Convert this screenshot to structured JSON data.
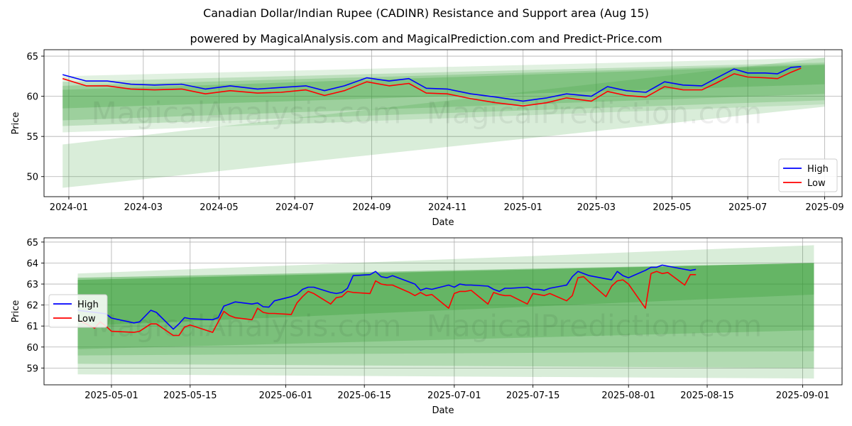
{
  "title": "Canadian Dollar/Indian Rupee (CADINR) Resistance and Support area (Aug 15)",
  "subtitle": "powered by MagicalAnalysis.com and MagicalPrediction.com and Predict-Price.com",
  "watermarks": [
    "MagicalAnalysis.com",
    "MagicalPrediction.com"
  ],
  "colors": {
    "high": "#0000ff",
    "low": "#ff0000",
    "band": "#2e9a2e",
    "grid": "#b0b0b0"
  },
  "chart_data": [
    {
      "type": "line",
      "xlabel": "Date",
      "ylabel": "Price",
      "xlim": [
        "2023-12-12",
        "2025-09-15"
      ],
      "ylim": [
        47.5,
        65.8
      ],
      "xticks": [
        "2024-01-01",
        "2024-03-01",
        "2024-05-01",
        "2024-07-01",
        "2024-09-01",
        "2024-11-01",
        "2025-01-01",
        "2025-03-01",
        "2025-05-01",
        "2025-07-01",
        "2025-09-01"
      ],
      "xtick_labels": [
        "2024-01",
        "2024-03",
        "2024-05",
        "2024-07",
        "2024-09",
        "2024-11",
        "2025-01",
        "2025-03",
        "2025-05",
        "2025-07",
        "2025-09"
      ],
      "yticks": [
        50,
        55,
        60,
        65
      ],
      "legend_position": "lower-right",
      "grid": true,
      "series": [
        {
          "name": "High",
          "x": [
            "2023-12-27",
            "2024-01-15",
            "2024-02-01",
            "2024-02-20",
            "2024-03-10",
            "2024-04-01",
            "2024-04-20",
            "2024-05-10",
            "2024-06-01",
            "2024-06-20",
            "2024-07-10",
            "2024-07-25",
            "2024-08-10",
            "2024-08-28",
            "2024-09-15",
            "2024-10-01",
            "2024-10-15",
            "2024-11-01",
            "2024-11-20",
            "2024-12-10",
            "2025-01-01",
            "2025-01-20",
            "2025-02-05",
            "2025-02-25",
            "2025-03-10",
            "2025-03-25",
            "2025-04-10",
            "2025-04-25",
            "2025-05-10",
            "2025-05-25",
            "2025-06-05",
            "2025-06-20",
            "2025-07-01",
            "2025-07-15",
            "2025-07-25",
            "2025-08-05",
            "2025-08-13"
          ],
          "values": [
            62.7,
            61.9,
            61.9,
            61.5,
            61.4,
            61.5,
            60.9,
            61.3,
            60.9,
            61.1,
            61.3,
            60.7,
            61.3,
            62.3,
            61.9,
            62.2,
            61.0,
            60.9,
            60.3,
            59.9,
            59.4,
            59.8,
            60.3,
            60.0,
            61.2,
            60.7,
            60.5,
            61.8,
            61.4,
            61.3,
            62.2,
            63.4,
            62.9,
            62.9,
            62.8,
            63.6,
            63.7
          ]
        },
        {
          "name": "Low",
          "x": [
            "2023-12-27",
            "2024-01-15",
            "2024-02-01",
            "2024-02-20",
            "2024-03-10",
            "2024-04-01",
            "2024-04-20",
            "2024-05-10",
            "2024-06-01",
            "2024-06-20",
            "2024-07-10",
            "2024-07-25",
            "2024-08-10",
            "2024-08-28",
            "2024-09-15",
            "2024-10-01",
            "2024-10-15",
            "2024-11-01",
            "2024-11-20",
            "2024-12-10",
            "2025-01-01",
            "2025-01-20",
            "2025-02-05",
            "2025-02-25",
            "2025-03-10",
            "2025-03-25",
            "2025-04-10",
            "2025-04-25",
            "2025-05-10",
            "2025-05-25",
            "2025-06-05",
            "2025-06-20",
            "2025-07-01",
            "2025-07-15",
            "2025-07-25",
            "2025-08-05",
            "2025-08-13"
          ],
          "values": [
            62.2,
            61.3,
            61.3,
            60.9,
            60.8,
            60.9,
            60.3,
            60.7,
            60.4,
            60.5,
            60.8,
            60.1,
            60.7,
            61.8,
            61.3,
            61.6,
            60.4,
            60.3,
            59.7,
            59.2,
            58.8,
            59.2,
            59.8,
            59.4,
            60.6,
            60.1,
            59.9,
            61.2,
            60.8,
            60.8,
            61.6,
            62.8,
            62.4,
            62.3,
            62.2,
            63.0,
            63.5
          ]
        }
      ],
      "bands": [
        {
          "x": [
            "2023-12-27",
            "2025-09-01"
          ],
          "lower": [
            48.6,
            58.7
          ],
          "upper": [
            54.0,
            64.8
          ],
          "opacity": 0.18
        },
        {
          "x": [
            "2023-12-27",
            "2025-09-01"
          ],
          "lower": [
            55.5,
            59.0
          ],
          "upper": [
            62.5,
            64.8
          ],
          "opacity": 0.14
        },
        {
          "x": [
            "2023-12-27",
            "2025-09-01"
          ],
          "lower": [
            56.3,
            59.5
          ],
          "upper": [
            61.8,
            64.2
          ],
          "opacity": 0.2
        },
        {
          "x": [
            "2023-12-27",
            "2025-09-01"
          ],
          "lower": [
            57.0,
            60.3
          ],
          "upper": [
            61.3,
            64.0
          ],
          "opacity": 0.22
        },
        {
          "x": [
            "2023-12-27",
            "2025-09-01"
          ],
          "lower": [
            58.5,
            61.5
          ],
          "upper": [
            60.8,
            63.9
          ],
          "opacity": 0.25
        }
      ]
    },
    {
      "type": "line",
      "xlabel": "Date",
      "ylabel": "Price",
      "xlim": [
        "2025-04-19",
        "2025-09-08"
      ],
      "ylim": [
        58.2,
        65.2
      ],
      "xticks": [
        "2025-05-01",
        "2025-05-15",
        "2025-06-01",
        "2025-06-15",
        "2025-07-01",
        "2025-07-15",
        "2025-08-01",
        "2025-08-15",
        "2025-09-01"
      ],
      "xtick_labels": [
        "2025-05-01",
        "2025-05-15",
        "2025-06-01",
        "2025-06-15",
        "2025-07-01",
        "2025-07-15",
        "2025-08-01",
        "2025-08-15",
        "2025-09-01"
      ],
      "yticks": [
        59,
        60,
        61,
        62,
        63,
        64,
        65
      ],
      "legend_position": "center-left",
      "grid": true,
      "series": [
        {
          "name": "High",
          "x": [
            "2025-04-25",
            "2025-04-28",
            "2025-04-29",
            "2025-04-30",
            "2025-05-01",
            "2025-05-05",
            "2025-05-06",
            "2025-05-08",
            "2025-05-09",
            "2025-05-12",
            "2025-05-13",
            "2025-05-14",
            "2025-05-15",
            "2025-05-19",
            "2025-05-20",
            "2025-05-21",
            "2025-05-22",
            "2025-05-23",
            "2025-05-26",
            "2025-05-27",
            "2025-05-28",
            "2025-05-29",
            "2025-05-30",
            "2025-06-02",
            "2025-06-03",
            "2025-06-04",
            "2025-06-05",
            "2025-06-06",
            "2025-06-09",
            "2025-06-10",
            "2025-06-11",
            "2025-06-12",
            "2025-06-13",
            "2025-06-16",
            "2025-06-17",
            "2025-06-18",
            "2025-06-19",
            "2025-06-20",
            "2025-06-23",
            "2025-06-24",
            "2025-06-25",
            "2025-06-26",
            "2025-06-27",
            "2025-06-30",
            "2025-07-01",
            "2025-07-02",
            "2025-07-03",
            "2025-07-04",
            "2025-07-07",
            "2025-07-08",
            "2025-07-09",
            "2025-07-10",
            "2025-07-11",
            "2025-07-14",
            "2025-07-15",
            "2025-07-16",
            "2025-07-17",
            "2025-07-18",
            "2025-07-21",
            "2025-07-22",
            "2025-07-23",
            "2025-07-24",
            "2025-07-25",
            "2025-07-28",
            "2025-07-29",
            "2025-07-30",
            "2025-07-31",
            "2025-08-01",
            "2025-08-04",
            "2025-08-05",
            "2025-08-06",
            "2025-08-07",
            "2025-08-08",
            "2025-08-11",
            "2025-08-12",
            "2025-08-13"
          ],
          "values": [
            61.75,
            61.65,
            61.62,
            61.58,
            61.38,
            61.15,
            61.2,
            61.75,
            61.65,
            60.85,
            61.1,
            61.4,
            61.35,
            61.3,
            61.4,
            61.95,
            62.05,
            62.15,
            62.05,
            62.1,
            61.92,
            61.9,
            62.2,
            62.4,
            62.5,
            62.75,
            62.85,
            62.85,
            62.6,
            62.55,
            62.6,
            62.8,
            63.4,
            63.45,
            63.6,
            63.35,
            63.3,
            63.4,
            63.1,
            63.0,
            62.7,
            62.8,
            62.75,
            62.95,
            62.85,
            63.0,
            62.95,
            62.95,
            62.9,
            62.75,
            62.65,
            62.8,
            62.8,
            62.85,
            62.75,
            62.75,
            62.7,
            62.8,
            62.95,
            63.35,
            63.6,
            63.5,
            63.4,
            63.25,
            63.2,
            63.6,
            63.4,
            63.3,
            63.65,
            63.8,
            63.8,
            63.9,
            63.85,
            63.7,
            63.65,
            63.7
          ]
        },
        {
          "name": "Low",
          "x": [
            "2025-04-25",
            "2025-04-28",
            "2025-04-29",
            "2025-04-30",
            "2025-05-01",
            "2025-05-05",
            "2025-05-06",
            "2025-05-08",
            "2025-05-09",
            "2025-05-12",
            "2025-05-13",
            "2025-05-14",
            "2025-05-15",
            "2025-05-19",
            "2025-05-20",
            "2025-05-21",
            "2025-05-22",
            "2025-05-23",
            "2025-05-26",
            "2025-05-27",
            "2025-05-28",
            "2025-05-29",
            "2025-05-30",
            "2025-06-02",
            "2025-06-03",
            "2025-06-04",
            "2025-06-05",
            "2025-06-06",
            "2025-06-09",
            "2025-06-10",
            "2025-06-11",
            "2025-06-12",
            "2025-06-13",
            "2025-06-16",
            "2025-06-17",
            "2025-06-18",
            "2025-06-19",
            "2025-06-20",
            "2025-06-23",
            "2025-06-24",
            "2025-06-25",
            "2025-06-26",
            "2025-06-27",
            "2025-06-30",
            "2025-07-01",
            "2025-07-02",
            "2025-07-03",
            "2025-07-04",
            "2025-07-07",
            "2025-07-08",
            "2025-07-09",
            "2025-07-10",
            "2025-07-11",
            "2025-07-14",
            "2025-07-15",
            "2025-07-16",
            "2025-07-17",
            "2025-07-18",
            "2025-07-21",
            "2025-07-22",
            "2025-07-23",
            "2025-07-24",
            "2025-07-25",
            "2025-07-28",
            "2025-07-29",
            "2025-07-30",
            "2025-07-31",
            "2025-08-01",
            "2025-08-04",
            "2025-08-05",
            "2025-08-06",
            "2025-08-07",
            "2025-08-08",
            "2025-08-11",
            "2025-08-12",
            "2025-08-13"
          ],
          "values": [
            61.3,
            60.9,
            61.2,
            61.0,
            60.75,
            60.7,
            60.75,
            61.1,
            61.1,
            60.55,
            60.55,
            60.95,
            61.05,
            60.7,
            61.2,
            61.7,
            61.5,
            61.4,
            61.3,
            61.85,
            61.65,
            61.6,
            61.6,
            61.55,
            62.1,
            62.4,
            62.65,
            62.55,
            62.05,
            62.35,
            62.4,
            62.65,
            62.6,
            62.55,
            63.15,
            63.0,
            62.95,
            62.95,
            62.6,
            62.45,
            62.6,
            62.45,
            62.5,
            61.85,
            62.55,
            62.65,
            62.65,
            62.7,
            62.05,
            62.6,
            62.5,
            62.45,
            62.45,
            62.05,
            62.55,
            62.5,
            62.45,
            62.55,
            62.2,
            62.45,
            63.3,
            63.35,
            63.1,
            62.4,
            62.9,
            63.15,
            63.2,
            63.0,
            61.85,
            63.5,
            63.6,
            63.5,
            63.55,
            62.95,
            63.45,
            63.45
          ]
        }
      ],
      "bands": [
        {
          "x": [
            "2025-04-25",
            "2025-09-03"
          ],
          "lower": [
            58.7,
            58.5
          ],
          "upper": [
            63.5,
            64.85
          ],
          "opacity": 0.18
        },
        {
          "x": [
            "2025-04-25",
            "2025-09-03"
          ],
          "lower": [
            59.2,
            59.0
          ],
          "upper": [
            63.3,
            64.0
          ],
          "opacity": 0.22
        },
        {
          "x": [
            "2025-04-25",
            "2025-09-03"
          ],
          "lower": [
            59.6,
            59.8
          ],
          "upper": [
            63.3,
            64.0
          ],
          "opacity": 0.22
        },
        {
          "x": [
            "2025-04-25",
            "2025-09-03"
          ],
          "lower": [
            59.9,
            60.8
          ],
          "upper": [
            63.2,
            64.0
          ],
          "opacity": 0.25
        },
        {
          "x": [
            "2025-04-25",
            "2025-09-03"
          ],
          "lower": [
            61.0,
            62.5
          ],
          "upper": [
            63.2,
            64.0
          ],
          "opacity": 0.28
        }
      ]
    }
  ]
}
